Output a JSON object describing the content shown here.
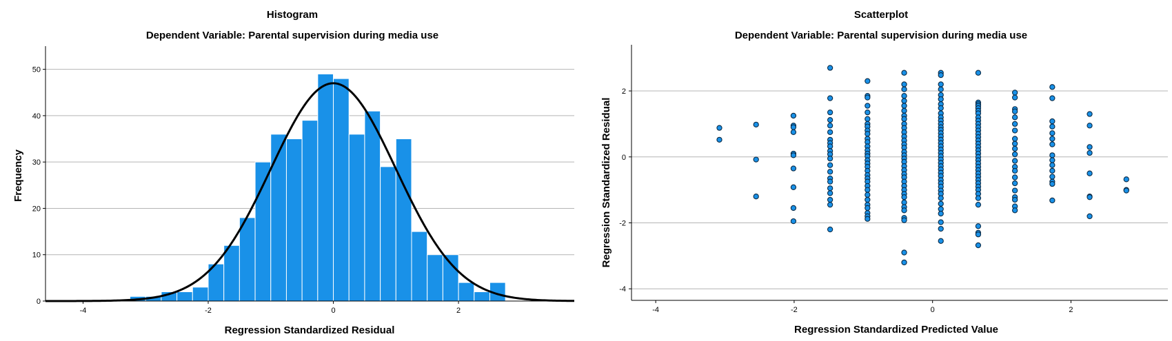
{
  "chart_data": [
    {
      "type": "bar",
      "title": "Histogram",
      "subtitle": "Dependent Variable: Parental supervision during media use",
      "xlabel": "Regression Standardized Residual",
      "ylabel": "Frequency",
      "xlim": [
        -4.6,
        3.85
      ],
      "ylim": [
        0,
        55
      ],
      "x_ticks": [
        -4,
        -2,
        0,
        2
      ],
      "y_ticks": [
        0,
        10,
        20,
        30,
        40,
        50
      ],
      "grid": "horizontal",
      "bin_width": 0.25,
      "bin_start": -3.25,
      "values": [
        1,
        1,
        2,
        2,
        3,
        8,
        12,
        18,
        30,
        36,
        35,
        39,
        49,
        48,
        36,
        41,
        29,
        35,
        15,
        10,
        10,
        4,
        2,
        4
      ],
      "bar_color": "#1991e8",
      "normal_curve": {
        "mean": 0,
        "peak": 47,
        "sd": 1,
        "color": "#000000"
      }
    },
    {
      "type": "scatter",
      "title": "Scatterplot",
      "subtitle": "Dependent Variable: Parental supervision during media use",
      "xlabel": "Regression Standardized Predicted Value",
      "ylabel": "Regression Standardized Residual",
      "xlim": [
        -4.35,
        3.4
      ],
      "ylim": [
        -4.35,
        3.4
      ],
      "x_ticks": [
        -4,
        -2,
        0,
        2
      ],
      "y_ticks": [
        -4,
        -2,
        0,
        2
      ],
      "grid": "horizontal",
      "point_color": "#1991e8",
      "columns": [
        {
          "x": -3.08,
          "y": [
            0.88,
            0.52
          ]
        },
        {
          "x": -2.55,
          "y": [
            0.98,
            -0.08,
            -1.2
          ]
        },
        {
          "x": -2.01,
          "y": [
            1.25,
            0.95,
            0.9,
            0.75,
            0.1,
            0.05,
            -0.35,
            -0.92,
            -1.55,
            -1.95
          ]
        },
        {
          "x": -1.48,
          "y": [
            2.7,
            1.78,
            1.35,
            1.12,
            0.95,
            0.75,
            0.52,
            0.42,
            0.32,
            0.18,
            0.08,
            -0.05,
            -0.25,
            -0.45,
            -0.65,
            -0.75,
            -0.95,
            -1.1,
            -1.3,
            -1.45,
            -2.2
          ]
        },
        {
          "x": -0.94,
          "y": [
            2.3,
            1.85,
            1.8,
            1.55,
            1.35,
            1.15,
            1.0,
            0.92,
            0.8,
            0.7,
            0.55,
            0.45,
            0.32,
            0.2,
            0.1,
            0.02,
            -0.1,
            -0.2,
            -0.3,
            -0.42,
            -0.55,
            -0.65,
            -0.75,
            -0.88,
            -1.0,
            -1.15,
            -1.3,
            -1.45,
            -1.55,
            -1.7,
            -1.8,
            -1.88
          ]
        },
        {
          "x": -0.41,
          "y": [
            2.55,
            2.2,
            2.05,
            1.85,
            1.7,
            1.55,
            1.4,
            1.25,
            1.15,
            1.0,
            0.88,
            0.75,
            0.62,
            0.5,
            0.38,
            0.28,
            0.15,
            0.05,
            -0.05,
            -0.15,
            -0.28,
            -0.4,
            -0.52,
            -0.62,
            -0.75,
            -0.88,
            -1.0,
            -1.12,
            -1.22,
            -1.38,
            -1.52,
            -1.62,
            -1.85,
            -1.92,
            -2.9,
            -3.2
          ]
        },
        {
          "x": 0.12,
          "y": [
            2.55,
            2.48,
            2.2,
            2.05,
            1.88,
            1.75,
            1.6,
            1.48,
            1.32,
            1.2,
            1.1,
            1.0,
            0.9,
            0.82,
            0.72,
            0.62,
            0.52,
            0.42,
            0.32,
            0.22,
            0.12,
            0.02,
            -0.08,
            -0.18,
            -0.28,
            -0.38,
            -0.48,
            -0.58,
            -0.7,
            -0.8,
            -0.9,
            -1.02,
            -1.12,
            -1.25,
            -1.42,
            -1.58,
            -1.72,
            -1.98,
            -2.18,
            -2.55
          ]
        },
        {
          "x": 0.66,
          "y": [
            2.55,
            1.65,
            1.6,
            1.55,
            1.48,
            1.4,
            1.32,
            1.2,
            1.1,
            1.0,
            0.9,
            0.8,
            0.7,
            0.6,
            0.5,
            0.4,
            0.3,
            0.2,
            0.1,
            0.0,
            -0.1,
            -0.2,
            -0.3,
            -0.4,
            -0.5,
            -0.6,
            -0.7,
            -0.8,
            -0.9,
            -1.0,
            -1.12,
            -1.25,
            -1.45,
            -2.1,
            -2.3,
            -2.35,
            -2.68
          ]
        },
        {
          "x": 1.19,
          "y": [
            1.95,
            1.8,
            1.45,
            1.38,
            1.2,
            1.0,
            0.8,
            0.55,
            0.4,
            0.25,
            0.08,
            -0.12,
            -0.3,
            -0.42,
            -0.62,
            -0.8,
            -1.02,
            -1.22,
            -1.3,
            -1.5,
            -1.62
          ]
        },
        {
          "x": 1.73,
          "y": [
            2.12,
            1.78,
            1.08,
            0.92,
            0.72,
            0.55,
            0.38,
            0.05,
            -0.1,
            -0.25,
            -0.42,
            -0.6,
            -0.75,
            -0.82,
            -1.32
          ]
        },
        {
          "x": 2.27,
          "y": [
            1.3,
            0.95,
            0.3,
            0.12,
            -0.5,
            -1.2,
            -1.22,
            -1.8
          ]
        },
        {
          "x": 2.8,
          "y": [
            -0.68,
            -1.0,
            -1.02
          ]
        }
      ]
    }
  ]
}
